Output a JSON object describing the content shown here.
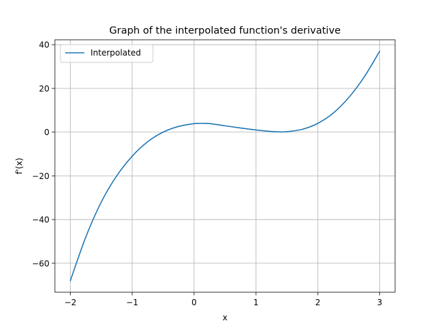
{
  "chart_data": {
    "type": "line",
    "title": "Graph of the interpolated function's derivative",
    "xlabel": "x",
    "ylabel": "f'(x)",
    "xlim": [
      -2.25,
      3.25
    ],
    "ylim": [
      -73.25,
      42.25
    ],
    "x_ticks": [
      -2,
      -1,
      0,
      1,
      2,
      3
    ],
    "x_tick_labels": [
      "−2",
      "−1",
      "0",
      "1",
      "2",
      "3"
    ],
    "y_ticks": [
      -60,
      -40,
      -20,
      0,
      20,
      40
    ],
    "y_tick_labels": [
      "−60",
      "−40",
      "−20",
      "0",
      "20",
      "40"
    ],
    "grid": true,
    "legend_position": "top-left",
    "series": [
      {
        "name": "Interpolated",
        "color": "#1f77b4",
        "x": [
          -2.0,
          -1.75,
          -1.5,
          -1.25,
          -1.0,
          -0.75,
          -0.5,
          -0.25,
          0.0,
          0.1,
          0.25,
          0.5,
          0.75,
          1.0,
          1.25,
          1.4,
          1.5,
          1.75,
          2.0,
          2.25,
          2.5,
          2.75,
          3.0
        ],
        "y": [
          -68.0,
          -48.0,
          -32.0,
          -20.0,
          -11.0,
          -4.4,
          0.0,
          2.6,
          3.9,
          4.0,
          3.9,
          2.9,
          1.9,
          1.0,
          0.3,
          0.1,
          0.2,
          1.3,
          4.0,
          8.7,
          15.8,
          25.2,
          37.0
        ]
      }
    ]
  }
}
